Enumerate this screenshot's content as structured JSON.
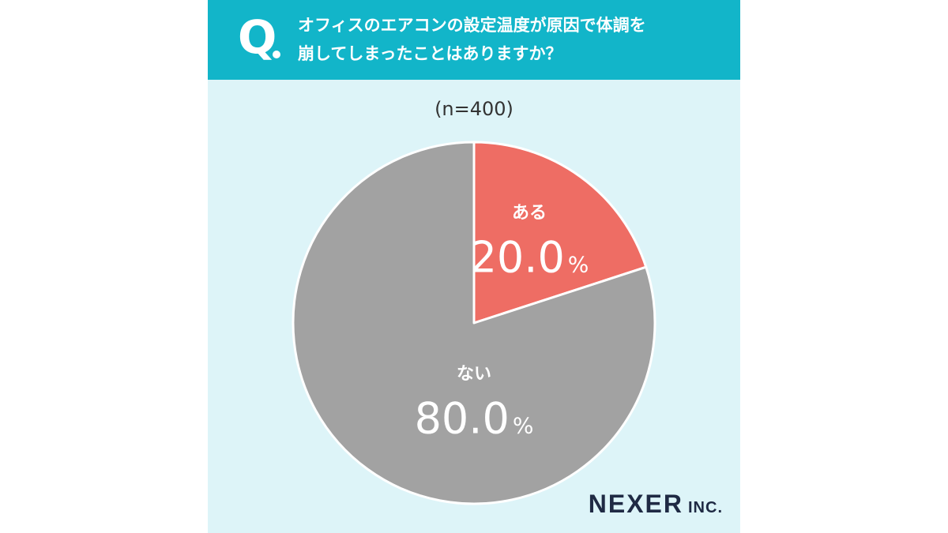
{
  "header": {
    "q_mark": "Q",
    "question": "オフィスのエアコンの設定温度が原因で体調を\n崩してしまったことはありますか？"
  },
  "sample_size": "(n=400)",
  "chart_data": {
    "type": "pie",
    "categories": [
      "ある",
      "ない"
    ],
    "values": [
      20.0,
      80.0
    ],
    "value_labels": [
      "20.0",
      "80.0"
    ],
    "unit": "%",
    "colors": [
      "#ee6d64",
      "#a2a2a2"
    ]
  },
  "logo": {
    "main": "NEXER",
    "sub": "INC."
  }
}
